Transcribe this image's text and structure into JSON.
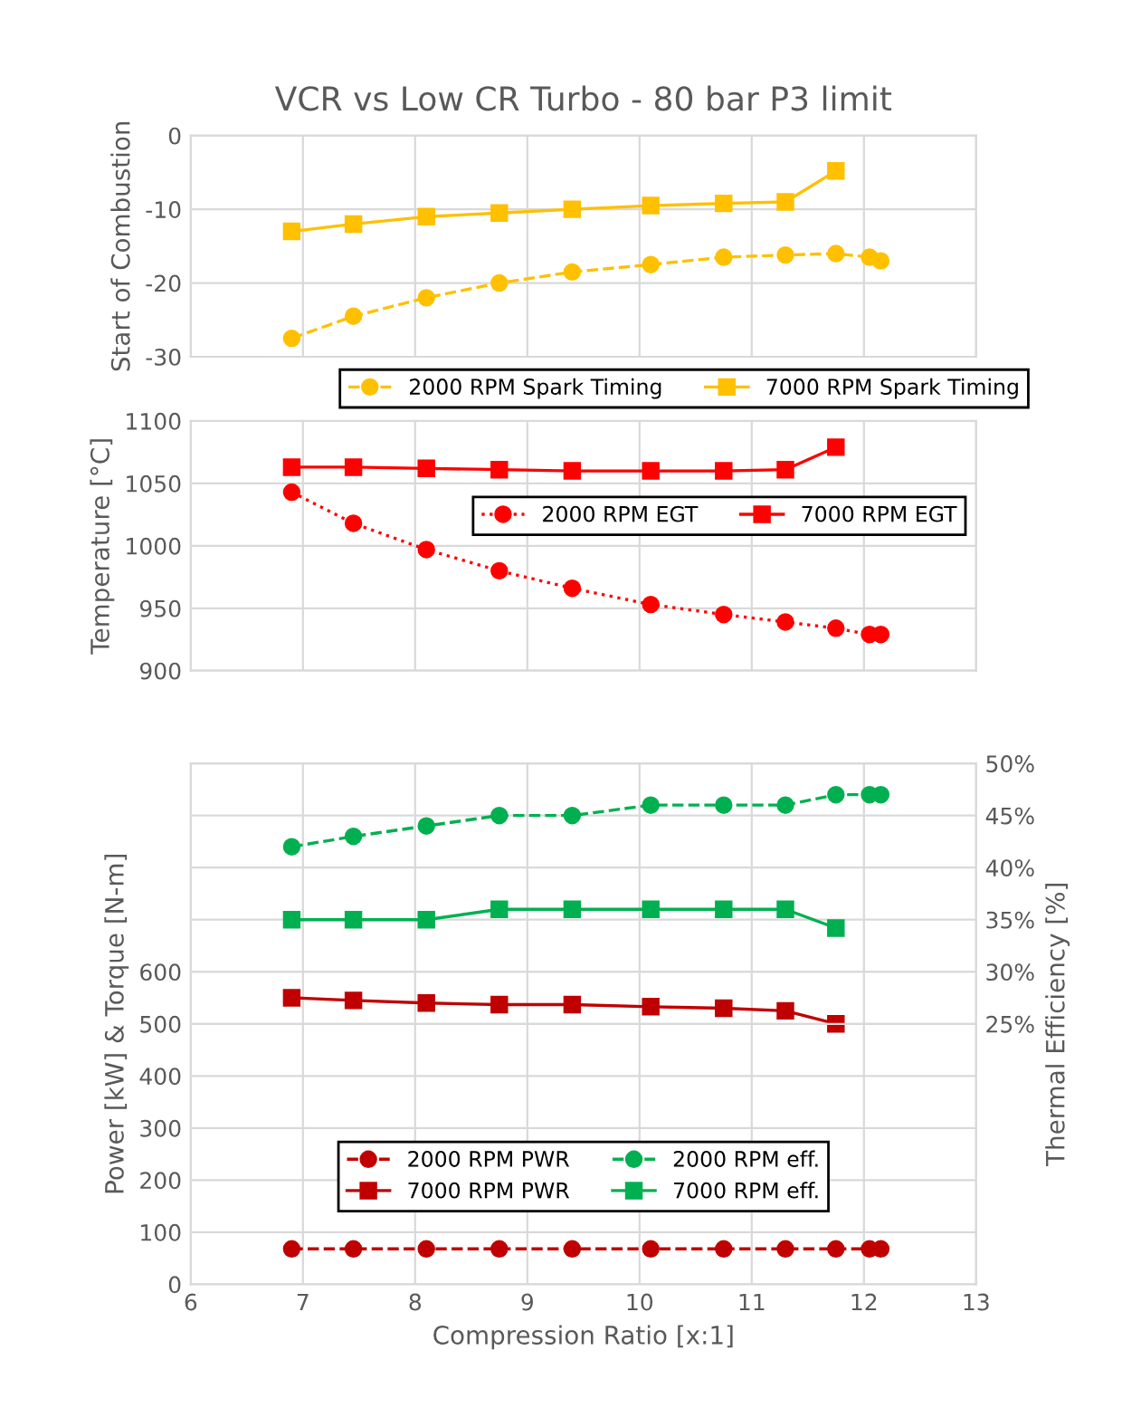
{
  "chart_data": [
    {
      "type": "line",
      "title": "VCR vs Low CR Turbo - 80 bar P3 limit",
      "ylabel": "Start of Combustion",
      "xlim": [
        6,
        13
      ],
      "xticks": [
        6,
        7,
        8,
        9,
        10,
        11,
        12,
        13
      ],
      "ylim": [
        -30,
        0
      ],
      "yticks": [
        -30,
        -20,
        -10,
        0
      ],
      "tick_labels": "y",
      "grid": true,
      "legend": "bottom right",
      "series": [
        {
          "name": "2000 RPM Spark Timing",
          "color": "#ffc000",
          "marker": "circle",
          "line_style": "dashed",
          "x": [
            6.9,
            7.45,
            8.1,
            8.75,
            9.4,
            10.1,
            10.75,
            11.3,
            11.75,
            12.05,
            12.15
          ],
          "values": [
            -27.5,
            -24.5,
            -22,
            -20,
            -18.5,
            -17.5,
            -16.5,
            -16.2,
            -16,
            -16.5,
            -17
          ]
        },
        {
          "name": "7000 RPM Spark Timing",
          "color": "#ffc000",
          "marker": "square",
          "line_style": "solid",
          "x": [
            6.9,
            7.45,
            8.1,
            8.75,
            9.4,
            10.1,
            10.75,
            11.3,
            11.75
          ],
          "values": [
            -13,
            -12,
            -11,
            -10.5,
            -10,
            -9.5,
            -9.2,
            -9,
            -4.8
          ]
        }
      ]
    },
    {
      "type": "line",
      "ylabel": "Temperature [°C]",
      "xlim": [
        6,
        13
      ],
      "xticks": [
        6,
        7,
        8,
        9,
        10,
        11,
        12,
        13
      ],
      "ylim": [
        900,
        1100
      ],
      "yticks": [
        900,
        950,
        1000,
        1050,
        1100
      ],
      "tick_labels": "y",
      "grid": true,
      "legend": "right",
      "series": [
        {
          "name": "2000 RPM EGT",
          "color": "#ff0000",
          "marker": "circle",
          "line_style": "dotted",
          "x": [
            6.9,
            7.45,
            8.1,
            8.75,
            9.4,
            10.1,
            10.75,
            11.3,
            11.75,
            12.05,
            12.15
          ],
          "values": [
            1043,
            1018,
            997,
            980,
            966,
            953,
            945,
            939,
            934,
            929,
            929
          ]
        },
        {
          "name": "7000 RPM EGT",
          "color": "#ff0000",
          "marker": "square",
          "line_style": "solid",
          "x": [
            6.9,
            7.45,
            8.1,
            8.75,
            9.4,
            10.1,
            10.75,
            11.3,
            11.75
          ],
          "values": [
            1063,
            1063,
            1062,
            1061,
            1060,
            1060,
            1060,
            1061,
            1079
          ]
        }
      ]
    },
    {
      "type": "line",
      "xlabel": "Compression Ratio [x:1]",
      "ylabel": "Power [kW] & Torque [N-m]",
      "y2label": "Thermal Efficiency [%]",
      "xlim": [
        6,
        13
      ],
      "xticks": [
        6,
        7,
        8,
        9,
        10,
        11,
        12,
        13
      ],
      "ylim": [
        0,
        1000
      ],
      "yticks": [
        0,
        100,
        200,
        300,
        400,
        500,
        600
      ],
      "y2lim": [
        0,
        50
      ],
      "y2ticks": [
        {
          "value": 25,
          "label": "25%"
        },
        {
          "value": 30,
          "label": "30%"
        },
        {
          "value": 35,
          "label": "35%"
        },
        {
          "value": 40,
          "label": "40%"
        },
        {
          "value": 45,
          "label": "45%"
        },
        {
          "value": 50,
          "label": "50%"
        }
      ],
      "grid": true,
      "legend": "bottom",
      "series": [
        {
          "name": "2000 RPM PWR",
          "color": "#c00000",
          "marker": "circle",
          "line_style": "dashed",
          "x": [
            6.9,
            7.45,
            8.1,
            8.75,
            9.4,
            10.1,
            10.75,
            11.3,
            11.75,
            12.05,
            12.15
          ],
          "values": [
            68,
            68,
            68,
            68,
            68,
            68,
            68,
            68,
            68,
            68,
            68
          ]
        },
        {
          "name": "7000 RPM PWR",
          "color": "#c00000",
          "marker": "square",
          "line_style": "solid",
          "x": [
            6.9,
            7.45,
            8.1,
            8.75,
            9.4,
            10.1,
            10.75,
            11.3,
            11.75
          ],
          "values": [
            550,
            545,
            540,
            537,
            537,
            533,
            530,
            525,
            500
          ]
        },
        {
          "name": "2000 RPM eff.",
          "color": "#00b050",
          "marker": "circle",
          "line_style": "dashed",
          "axis": "y2",
          "x": [
            6.9,
            7.45,
            8.1,
            8.75,
            9.4,
            10.1,
            10.75,
            11.3,
            11.75,
            12.05,
            12.15
          ],
          "values": [
            42,
            43,
            44,
            45,
            45,
            46,
            46,
            46,
            47,
            47,
            47
          ]
        },
        {
          "name": "7000 RPM eff.",
          "color": "#00b050",
          "marker": "square",
          "line_style": "solid",
          "axis": "y2",
          "x": [
            6.9,
            7.45,
            8.1,
            8.75,
            9.4,
            10.1,
            10.75,
            11.3,
            11.75
          ],
          "values": [
            35,
            35,
            35,
            36,
            36,
            36,
            36,
            36,
            34.2
          ]
        }
      ]
    }
  ]
}
